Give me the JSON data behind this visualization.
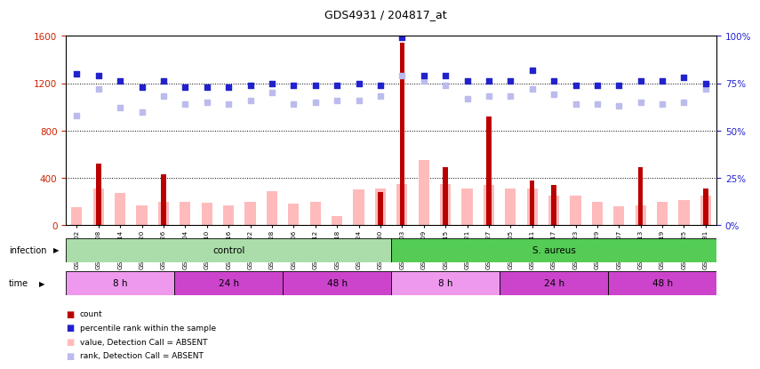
{
  "title": "GDS4931 / 204817_at",
  "samples": [
    "GSM343802",
    "GSM343808",
    "GSM343814",
    "GSM343820",
    "GSM343826",
    "GSM343804",
    "GSM343810",
    "GSM343816",
    "GSM343822",
    "GSM343828",
    "GSM343806",
    "GSM343812",
    "GSM343818",
    "GSM343824",
    "GSM343830",
    "GSM343803",
    "GSM343809",
    "GSM343815",
    "GSM343821",
    "GSM343827",
    "GSM343805",
    "GSM343811",
    "GSM343817",
    "GSM343823",
    "GSM343829",
    "GSM343807",
    "GSM343813",
    "GSM343819",
    "GSM343825",
    "GSM343831"
  ],
  "count_values": [
    0,
    520,
    0,
    0,
    430,
    0,
    0,
    0,
    0,
    0,
    0,
    0,
    0,
    0,
    280,
    1540,
    0,
    490,
    0,
    920,
    0,
    380,
    340,
    0,
    0,
    0,
    490,
    0,
    0,
    310
  ],
  "value_absent": [
    150,
    310,
    270,
    170,
    200,
    200,
    190,
    170,
    200,
    290,
    180,
    200,
    80,
    300,
    310,
    350,
    550,
    350,
    310,
    340,
    310,
    310,
    250,
    250,
    200,
    160,
    170,
    200,
    210,
    250
  ],
  "percentile_rank": [
    80,
    79,
    76,
    73,
    76,
    73,
    73,
    73,
    74,
    75,
    74,
    74,
    74,
    75,
    74,
    99,
    79,
    79,
    76,
    76,
    76,
    82,
    76,
    74,
    74,
    74,
    76,
    76,
    78,
    75
  ],
  "rank_absent": [
    58,
    72,
    62,
    60,
    68,
    64,
    65,
    64,
    66,
    70,
    64,
    65,
    66,
    66,
    68,
    79,
    76,
    74,
    67,
    68,
    68,
    72,
    69,
    64,
    64,
    63,
    65,
    64,
    65,
    72
  ],
  "infection_groups": [
    {
      "label": "control",
      "start": 0,
      "end": 15,
      "color": "#aaddaa"
    },
    {
      "label": "S. aureus",
      "start": 15,
      "end": 30,
      "color": "#55cc55"
    }
  ],
  "time_groups": [
    {
      "label": "8 h",
      "start": 0,
      "end": 5,
      "color": "#ee99ee"
    },
    {
      "label": "24 h",
      "start": 5,
      "end": 10,
      "color": "#cc44cc"
    },
    {
      "label": "48 h",
      "start": 10,
      "end": 15,
      "color": "#cc44cc"
    },
    {
      "label": "8 h",
      "start": 15,
      "end": 20,
      "color": "#ee99ee"
    },
    {
      "label": "24 h",
      "start": 20,
      "end": 25,
      "color": "#cc44cc"
    },
    {
      "label": "48 h",
      "start": 25,
      "end": 30,
      "color": "#cc44cc"
    }
  ],
  "ylim_left": [
    0,
    1600
  ],
  "ylim_right": [
    0,
    100
  ],
  "yticks_left": [
    0,
    400,
    800,
    1200,
    1600
  ],
  "yticks_right": [
    0,
    25,
    50,
    75,
    100
  ],
  "ytick_labels_left": [
    "0",
    "400",
    "800",
    "1200",
    "1600"
  ],
  "ytick_labels_right": [
    "0%",
    "25%",
    "50%",
    "75%",
    "100%"
  ],
  "count_color": "#bb0000",
  "percentile_color": "#2222cc",
  "value_absent_color": "#ffbbbb",
  "rank_absent_color": "#bbbbee",
  "bg_color": "#ffffff",
  "plot_bg_color": "#ffffff",
  "legend_items": [
    {
      "label": "count",
      "color": "#bb0000"
    },
    {
      "label": "percentile rank within the sample",
      "color": "#2222cc"
    },
    {
      "label": "value, Detection Call = ABSENT",
      "color": "#ffbbbb"
    },
    {
      "label": "rank, Detection Call = ABSENT",
      "color": "#bbbbee"
    }
  ]
}
